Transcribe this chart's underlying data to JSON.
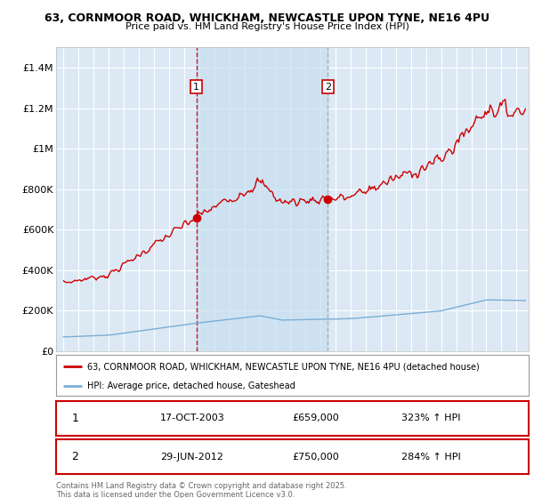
{
  "title_line1": "63, CORNMOOR ROAD, WHICKHAM, NEWCASTLE UPON TYNE, NE16 4PU",
  "title_line2": "Price paid vs. HM Land Registry's House Price Index (HPI)",
  "legend_line1": "63, CORNMOOR ROAD, WHICKHAM, NEWCASTLE UPON TYNE, NE16 4PU (detached house)",
  "legend_line2": "HPI: Average price, detached house, Gateshead",
  "annotation1_date": "17-OCT-2003",
  "annotation1_price": "£659,000",
  "annotation1_hpi": "323% ↑ HPI",
  "annotation2_date": "29-JUN-2012",
  "annotation2_price": "£750,000",
  "annotation2_hpi": "284% ↑ HPI",
  "footnote": "Contains HM Land Registry data © Crown copyright and database right 2025.\nThis data is licensed under the Open Government Licence v3.0.",
  "background_color": "#ffffff",
  "plot_bg_color": "#dce9f5",
  "shade_color": "#c8dff0",
  "grid_color": "#ffffff",
  "red_line_color": "#cc0000",
  "blue_line_color": "#7aaed6",
  "vline1_color": "#cc0000",
  "vline2_color": "#aaaaaa",
  "vline1_x": 2003.79,
  "vline2_x": 2012.49,
  "purchase1_value": 659000,
  "purchase2_value": 750000,
  "ylim_min": 0,
  "ylim_max": 1500000,
  "xlim_min": 1994.5,
  "xlim_max": 2025.8,
  "yticks": [
    0,
    200000,
    400000,
    600000,
    800000,
    1000000,
    1200000,
    1400000
  ],
  "ytick_labels": [
    "£0",
    "£200K",
    "£400K",
    "£600K",
    "£800K",
    "£1M",
    "£1.2M",
    "£1.4M"
  ],
  "xticks": [
    1995,
    1996,
    1997,
    1998,
    1999,
    2000,
    2001,
    2002,
    2003,
    2004,
    2005,
    2006,
    2007,
    2008,
    2009,
    2010,
    2011,
    2012,
    2013,
    2014,
    2015,
    2016,
    2017,
    2018,
    2019,
    2020,
    2021,
    2022,
    2023,
    2024,
    2025
  ]
}
